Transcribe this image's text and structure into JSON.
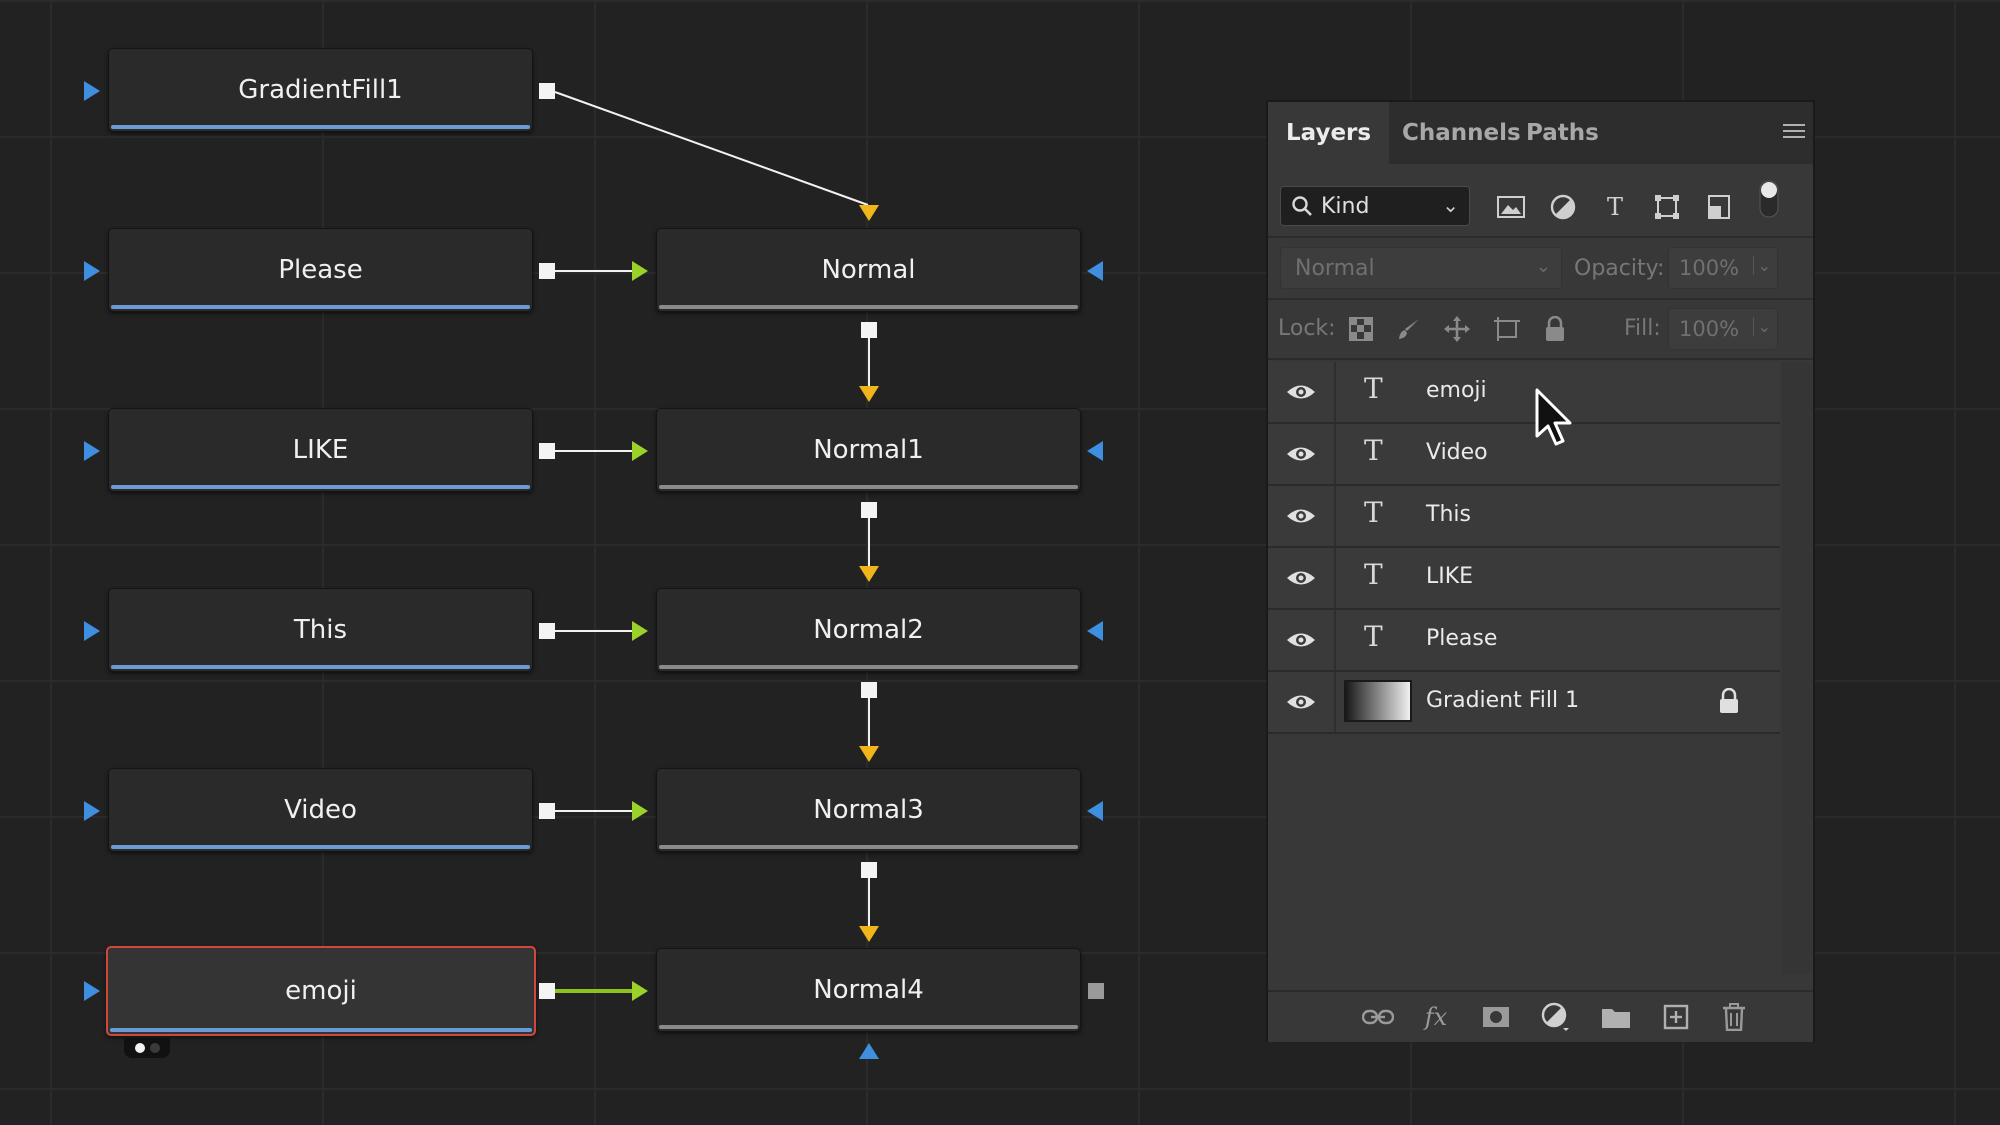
{
  "node_graph": {
    "source_nodes": [
      {
        "label": "GradientFill1"
      },
      {
        "label": "Please"
      },
      {
        "label": "LIKE"
      },
      {
        "label": "This"
      },
      {
        "label": "Video"
      },
      {
        "label": "emoji",
        "selected": true
      }
    ],
    "merge_nodes": [
      {
        "label": "Normal"
      },
      {
        "label": "Normal1"
      },
      {
        "label": "Normal2"
      },
      {
        "label": "Normal3"
      },
      {
        "label": "Normal4"
      }
    ],
    "colors": {
      "input_port": "#3f8fe0",
      "foreground_port": "#9bd22a",
      "background_port": "#f0b51a",
      "selection_border": "#d0473c",
      "source_bar": "#6b9bd6"
    }
  },
  "layers_panel": {
    "tabs": [
      {
        "label": "Layers",
        "active": true
      },
      {
        "label": "Channels",
        "active": false
      },
      {
        "label": "Paths",
        "active": false
      }
    ],
    "filter": {
      "kind_label": "Kind",
      "icons": [
        "image-filter-icon",
        "adjustment-filter-icon",
        "type-filter-icon",
        "shape-filter-icon",
        "smart-object-filter-icon",
        "filter-toggle-icon"
      ]
    },
    "blend_mode": "Normal",
    "opacity_label": "Opacity:",
    "opacity_value": "100%",
    "lock_label": "Lock:",
    "fill_label": "Fill:",
    "fill_value": "100%",
    "layers": [
      {
        "name": "emoji",
        "type": "text",
        "visible": true
      },
      {
        "name": "Video",
        "type": "text",
        "visible": true
      },
      {
        "name": "This",
        "type": "text",
        "visible": true
      },
      {
        "name": "LIKE",
        "type": "text",
        "visible": true
      },
      {
        "name": "Please",
        "type": "text",
        "visible": true
      },
      {
        "name": "Gradient Fill 1",
        "type": "fill",
        "visible": true,
        "locked": true
      }
    ],
    "bottom_icons": [
      "link-layers-icon",
      "fx-icon",
      "add-mask-icon",
      "adjustment-layer-icon",
      "new-group-icon",
      "new-layer-icon",
      "trash-icon"
    ],
    "fx_glyph": "fx"
  }
}
